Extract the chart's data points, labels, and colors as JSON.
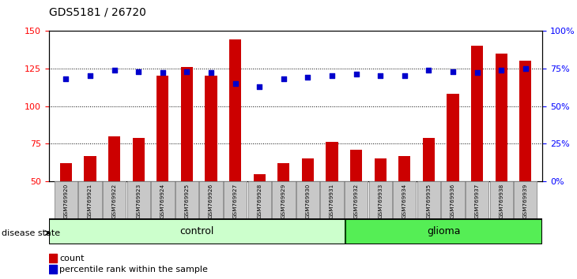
{
  "title": "GDS5181 / 26720",
  "samples": [
    "GSM769920",
    "GSM769921",
    "GSM769922",
    "GSM769923",
    "GSM769924",
    "GSM769925",
    "GSM769926",
    "GSM769927",
    "GSM769928",
    "GSM769929",
    "GSM769930",
    "GSM769931",
    "GSM769932",
    "GSM769933",
    "GSM769934",
    "GSM769935",
    "GSM769936",
    "GSM769937",
    "GSM769938",
    "GSM769939"
  ],
  "counts": [
    62,
    67,
    80,
    79,
    120,
    126,
    120,
    144,
    55,
    62,
    65,
    76,
    71,
    65,
    67,
    79,
    108,
    140,
    135,
    130
  ],
  "percentiles": [
    68,
    70,
    74,
    73,
    72,
    73,
    72,
    65,
    63,
    68,
    69,
    70,
    71,
    70,
    70,
    74,
    73,
    72,
    74,
    75
  ],
  "control_count": 12,
  "glioma_count": 8,
  "ylim_left": [
    50,
    150
  ],
  "ylim_right": [
    0,
    100
  ],
  "yticks_left": [
    50,
    75,
    100,
    125,
    150
  ],
  "yticks_right": [
    0,
    25,
    50,
    75,
    100
  ],
  "ytick_labels_right": [
    "0%",
    "25%",
    "50%",
    "75%",
    "100%"
  ],
  "bar_color": "#cc0000",
  "dot_color": "#0000cc",
  "control_color": "#ccffcc",
  "glioma_color": "#55ee55",
  "label_bg_color": "#c8c8c8",
  "legend_count_label": "count",
  "legend_pct_label": "percentile rank within the sample"
}
